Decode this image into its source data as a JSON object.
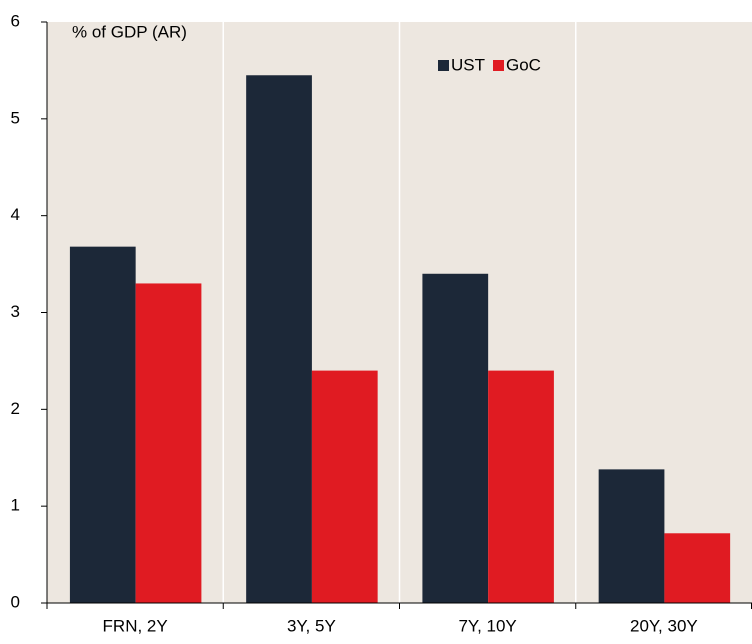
{
  "chart_data": {
    "type": "bar",
    "y_label": "% of GDP (AR)",
    "categories": [
      "FRN, 2Y",
      "3Y, 5Y",
      "7Y, 10Y",
      "20Y, 30Y"
    ],
    "series": [
      {
        "name": "UST",
        "color": "#1c2838",
        "values": [
          3.68,
          5.45,
          3.4,
          1.38
        ]
      },
      {
        "name": "GoC",
        "color": "#e01b22",
        "values": [
          3.3,
          2.4,
          2.4,
          0.72
        ]
      }
    ],
    "ylim": [
      0,
      6
    ],
    "yticks": [
      0,
      1,
      2,
      3,
      4,
      5,
      6
    ]
  }
}
